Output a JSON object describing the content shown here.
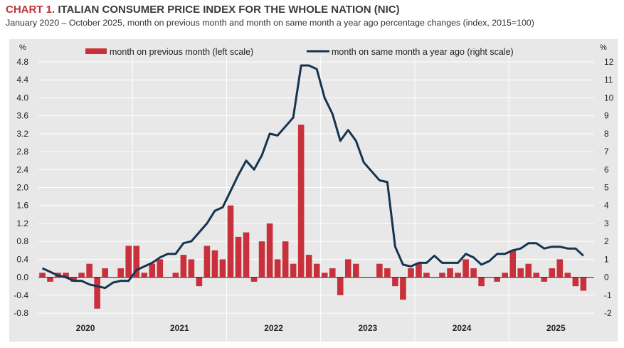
{
  "header": {
    "chart_number": "CHART 1.",
    "title": "ITALIAN CONSUMER PRICE INDEX FOR THE WHOLE NATION (NIC)",
    "subtitle": "January 2020 – October 2025, month on previous month and month on same month a year ago percentage changes (index, 2015=100)"
  },
  "colors": {
    "bar": "#c8313c",
    "line": "#17344f",
    "panel": "#e8e8e8"
  },
  "chart_data": {
    "type": "bar+line",
    "title": "ITALIAN CONSUMER PRICE INDEX FOR THE WHOLE NATION (NIC)",
    "left_axis": {
      "unit": "%",
      "ylim": [
        -0.8,
        4.8
      ],
      "ticks": [
        "4.8",
        "4.4",
        "4.0",
        "3.6",
        "3.2",
        "2.8",
        "2.4",
        "2.0",
        "1.6",
        "1.2",
        "0.8",
        "0.4",
        "0.0",
        "-0.4",
        "-0.8"
      ]
    },
    "right_axis": {
      "unit": "%",
      "ylim": [
        -2,
        12
      ],
      "ticks": [
        "12",
        "11",
        "10",
        "9",
        "8",
        "7",
        "6",
        "5",
        "4",
        "3",
        "2",
        "1",
        "0",
        "-1",
        "-2"
      ]
    },
    "years": [
      "2020",
      "2021",
      "2022",
      "2023",
      "2024",
      "2025"
    ],
    "legend": {
      "position": "top",
      "bar_label": "month on previous month (left scale)",
      "line_label": "month on same month a year ago (right scale)"
    },
    "series": [
      {
        "name": "month on previous month (left scale)",
        "type": "bar",
        "axis": "left",
        "values": [
          0.1,
          -0.1,
          0.1,
          0.1,
          -0.1,
          0.1,
          0.3,
          -0.7,
          0.2,
          0.0,
          0.2,
          0.7,
          0.7,
          0.1,
          0.3,
          0.4,
          0.0,
          0.1,
          0.5,
          0.4,
          -0.2,
          0.7,
          0.6,
          0.4,
          1.6,
          0.9,
          1.0,
          -0.1,
          0.8,
          1.2,
          0.4,
          0.8,
          0.3,
          3.4,
          0.5,
          0.3,
          0.1,
          0.2,
          -0.4,
          0.4,
          0.3,
          0.0,
          0.0,
          0.3,
          0.2,
          -0.2,
          -0.5,
          0.2,
          0.3,
          0.1,
          0.0,
          0.1,
          0.2,
          0.1,
          0.4,
          0.2,
          -0.2,
          0.0,
          -0.1,
          0.1,
          0.6,
          0.2,
          0.3,
          0.1,
          -0.1,
          0.2,
          0.4,
          0.1,
          -0.2,
          -0.3
        ]
      },
      {
        "name": "month on same month a year ago (right scale)",
        "type": "line",
        "axis": "right",
        "values": [
          0.5,
          0.3,
          0.1,
          0.0,
          -0.2,
          -0.2,
          -0.4,
          -0.5,
          -0.6,
          -0.3,
          -0.2,
          -0.2,
          0.4,
          0.6,
          0.8,
          1.1,
          1.3,
          1.3,
          1.9,
          2.0,
          2.5,
          3.0,
          3.7,
          3.9,
          4.8,
          5.7,
          6.5,
          6.0,
          6.8,
          8.0,
          7.9,
          8.4,
          8.9,
          11.8,
          11.8,
          11.6,
          10.0,
          9.1,
          7.6,
          8.2,
          7.6,
          6.4,
          5.9,
          5.4,
          5.3,
          1.7,
          0.7,
          0.6,
          0.8,
          0.8,
          1.2,
          0.8,
          0.8,
          0.8,
          1.3,
          1.1,
          0.7,
          0.9,
          1.3,
          1.3,
          1.5,
          1.6,
          1.9,
          1.9,
          1.6,
          1.7,
          1.7,
          1.6,
          1.6,
          1.2
        ]
      }
    ]
  }
}
